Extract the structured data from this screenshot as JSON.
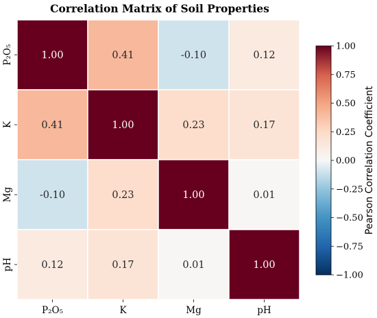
{
  "chart_data": {
    "type": "heatmap",
    "title": "Correlation Matrix of Soil Properties",
    "row_labels": [
      "P₂O₅",
      "K",
      "Mg",
      "pH"
    ],
    "col_labels": [
      "P₂O₅",
      "K",
      "Mg",
      "pH"
    ],
    "values": [
      [
        1.0,
        0.41,
        -0.1,
        0.12
      ],
      [
        0.41,
        1.0,
        0.23,
        0.17
      ],
      [
        -0.1,
        0.23,
        1.0,
        0.01
      ],
      [
        0.12,
        0.17,
        0.01,
        1.0
      ]
    ],
    "value_format": "2dp",
    "colormap": "RdBu_r",
    "vmin": -1.0,
    "vmax": 1.0,
    "colorbar": {
      "label": "Pearson Correlation Coefficient",
      "ticks": [
        "1.00",
        "0.75",
        "0.50",
        "0.25",
        "0.00",
        "−0.25",
        "−0.50",
        "−0.75",
        "−1.00"
      ],
      "tick_values": [
        1.0,
        0.75,
        0.5,
        0.25,
        0.0,
        -0.25,
        -0.5,
        -0.75,
        -1.0
      ]
    },
    "colors": {
      "cell_border": "#ffffff",
      "low": "#053061",
      "mid": "#f7f7f7",
      "high": "#67001f"
    }
  }
}
